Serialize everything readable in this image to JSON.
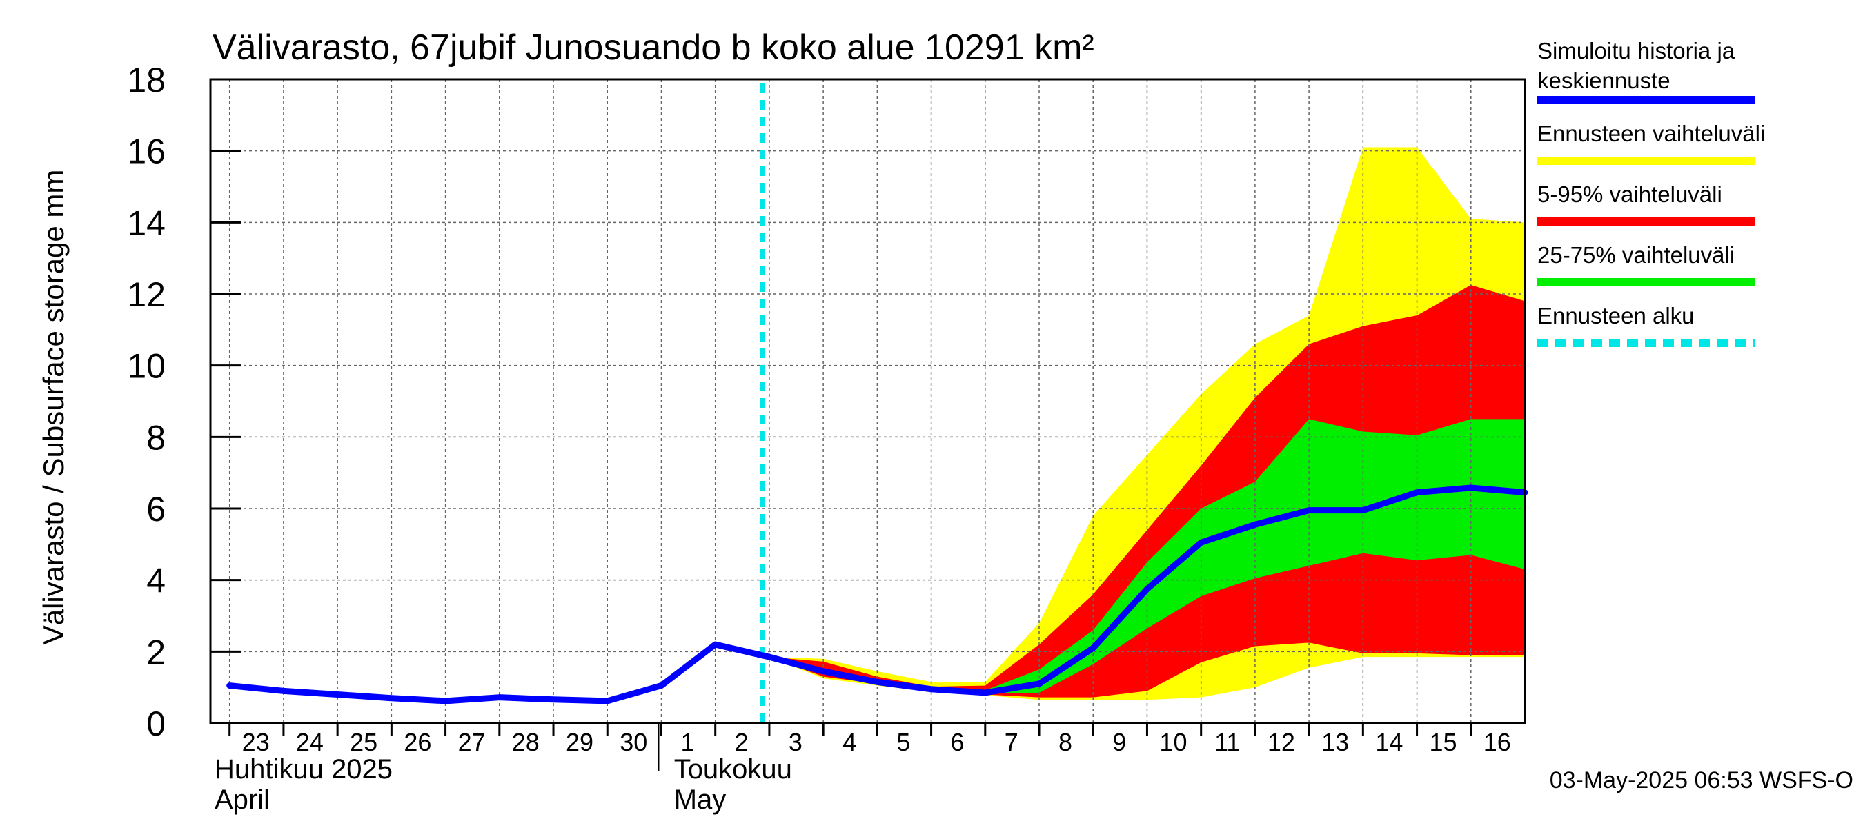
{
  "chart_data": {
    "type": "area",
    "title": "Välivarasto, 67jubif Junosuando b koko alue 10291 km²",
    "ylabel": "Välivarasto / Subsurface storage  mm",
    "ylim": [
      0,
      18
    ],
    "yticks": [
      0,
      2,
      4,
      6,
      8,
      10,
      12,
      14,
      16,
      18
    ],
    "grid": true,
    "legend_position": "right",
    "x_tick_labels": [
      "23",
      "24",
      "25",
      "26",
      "27",
      "28",
      "29",
      "30",
      "1",
      "2",
      "3",
      "4",
      "5",
      "6",
      "7",
      "8",
      "9",
      "10",
      "11",
      "12",
      "13",
      "14",
      "15",
      "16"
    ],
    "month_labels": [
      {
        "line1": "Huhtikuu  2025",
        "line2": "April"
      },
      {
        "line1": "Toukokuu",
        "line2": "May"
      }
    ],
    "x": [
      "2025-04-23",
      "2025-04-24",
      "2025-04-25",
      "2025-04-26",
      "2025-04-27",
      "2025-04-28",
      "2025-04-29",
      "2025-04-30",
      "2025-05-01",
      "2025-05-02",
      "2025-05-03",
      "2025-05-04",
      "2025-05-05",
      "2025-05-06",
      "2025-05-07",
      "2025-05-08",
      "2025-05-09",
      "2025-05-10",
      "2025-05-11",
      "2025-05-12",
      "2025-05-13",
      "2025-05-14",
      "2025-05-15",
      "2025-05-16",
      "2025-05-17"
    ],
    "forecast_start": "2025-05-02 20:53",
    "series": [
      {
        "name": "Simuloitu historia ja keskiennuste",
        "color": "#0000ff",
        "x": [
          "2025-04-23",
          "2025-04-24",
          "2025-04-25",
          "2025-04-26",
          "2025-04-27",
          "2025-04-28",
          "2025-04-29",
          "2025-04-30",
          "2025-05-01",
          "2025-05-02",
          "2025-05-03",
          "2025-05-04",
          "2025-05-05",
          "2025-05-06",
          "2025-05-07",
          "2025-05-08",
          "2025-05-09",
          "2025-05-10",
          "2025-05-11",
          "2025-05-12",
          "2025-05-13",
          "2025-05-14",
          "2025-05-15",
          "2025-05-16",
          "2025-05-17"
        ],
        "values": [
          1.05,
          0.9,
          0.8,
          0.7,
          0.62,
          0.72,
          0.66,
          0.62,
          1.05,
          2.2,
          1.85,
          1.45,
          1.15,
          0.95,
          0.85,
          1.1,
          2.1,
          3.75,
          5.05,
          5.55,
          5.95,
          5.95,
          6.45,
          6.58,
          6.45
        ]
      },
      {
        "name": "Ennusteen vaihteluväli",
        "color": "#ffff00",
        "x": [
          "2025-05-03",
          "2025-05-04",
          "2025-05-05",
          "2025-05-06",
          "2025-05-07",
          "2025-05-08",
          "2025-05-09",
          "2025-05-10",
          "2025-05-11",
          "2025-05-12",
          "2025-05-13",
          "2025-05-14",
          "2025-05-15",
          "2025-05-16",
          "2025-05-17"
        ],
        "upper": [
          1.85,
          1.8,
          1.45,
          1.15,
          1.15,
          2.8,
          5.8,
          7.5,
          9.2,
          10.6,
          11.4,
          16.1,
          16.1,
          14.1,
          14.0
        ],
        "lower": [
          1.85,
          1.25,
          1.05,
          0.88,
          0.78,
          0.65,
          0.65,
          0.65,
          0.72,
          1.0,
          1.55,
          1.85,
          1.85,
          1.85,
          1.85
        ]
      },
      {
        "name": "5-95% vaihteluväli",
        "color": "#ff0000",
        "x": [
          "2025-05-03",
          "2025-05-04",
          "2025-05-05",
          "2025-05-06",
          "2025-05-07",
          "2025-05-08",
          "2025-05-09",
          "2025-05-10",
          "2025-05-11",
          "2025-05-12",
          "2025-05-13",
          "2025-05-14",
          "2025-05-15",
          "2025-05-16",
          "2025-05-17"
        ],
        "upper": [
          1.85,
          1.72,
          1.3,
          1.02,
          1.05,
          2.2,
          3.6,
          5.4,
          7.2,
          9.1,
          10.6,
          11.1,
          11.4,
          12.25,
          11.8
        ],
        "lower": [
          1.85,
          1.3,
          1.1,
          0.9,
          0.8,
          0.72,
          0.72,
          0.9,
          1.7,
          2.15,
          2.25,
          1.95,
          1.95,
          1.9,
          1.9
        ]
      },
      {
        "name": "25-75% vaihteluväli",
        "color": "#00ee00",
        "x": [
          "2025-05-03",
          "2025-05-04",
          "2025-05-05",
          "2025-05-06",
          "2025-05-07",
          "2025-05-08",
          "2025-05-09",
          "2025-05-10",
          "2025-05-11",
          "2025-05-12",
          "2025-05-13",
          "2025-05-14",
          "2025-05-15",
          "2025-05-16",
          "2025-05-17"
        ],
        "upper": [
          1.85,
          1.5,
          1.2,
          0.97,
          0.92,
          1.5,
          2.6,
          4.5,
          6.0,
          6.75,
          8.5,
          8.15,
          8.05,
          8.5,
          8.5
        ],
        "lower": [
          1.85,
          1.4,
          1.12,
          0.92,
          0.82,
          0.85,
          1.65,
          2.65,
          3.55,
          4.05,
          4.4,
          4.75,
          4.55,
          4.7,
          4.3
        ]
      },
      {
        "name": "Ennusteen alku",
        "color": "#00e5e5"
      }
    ],
    "legend": [
      {
        "line1": "Simuloitu historia ja",
        "line2": "keskiennuste",
        "color": "#0000ff",
        "style": "solid"
      },
      {
        "line1": "Ennusteen vaihteluväli",
        "line2": "",
        "color": "#ffff00",
        "style": "solid"
      },
      {
        "line1": "5-95% vaihteluväli",
        "line2": "",
        "color": "#ff0000",
        "style": "solid"
      },
      {
        "line1": "25-75% vaihteluväli",
        "line2": "",
        "color": "#00ee00",
        "style": "solid"
      },
      {
        "line1": "Ennusteen alku",
        "line2": "",
        "color": "#00e5e5",
        "style": "dashed"
      }
    ],
    "footer": "03-May-2025 06:53 WSFS-O"
  }
}
